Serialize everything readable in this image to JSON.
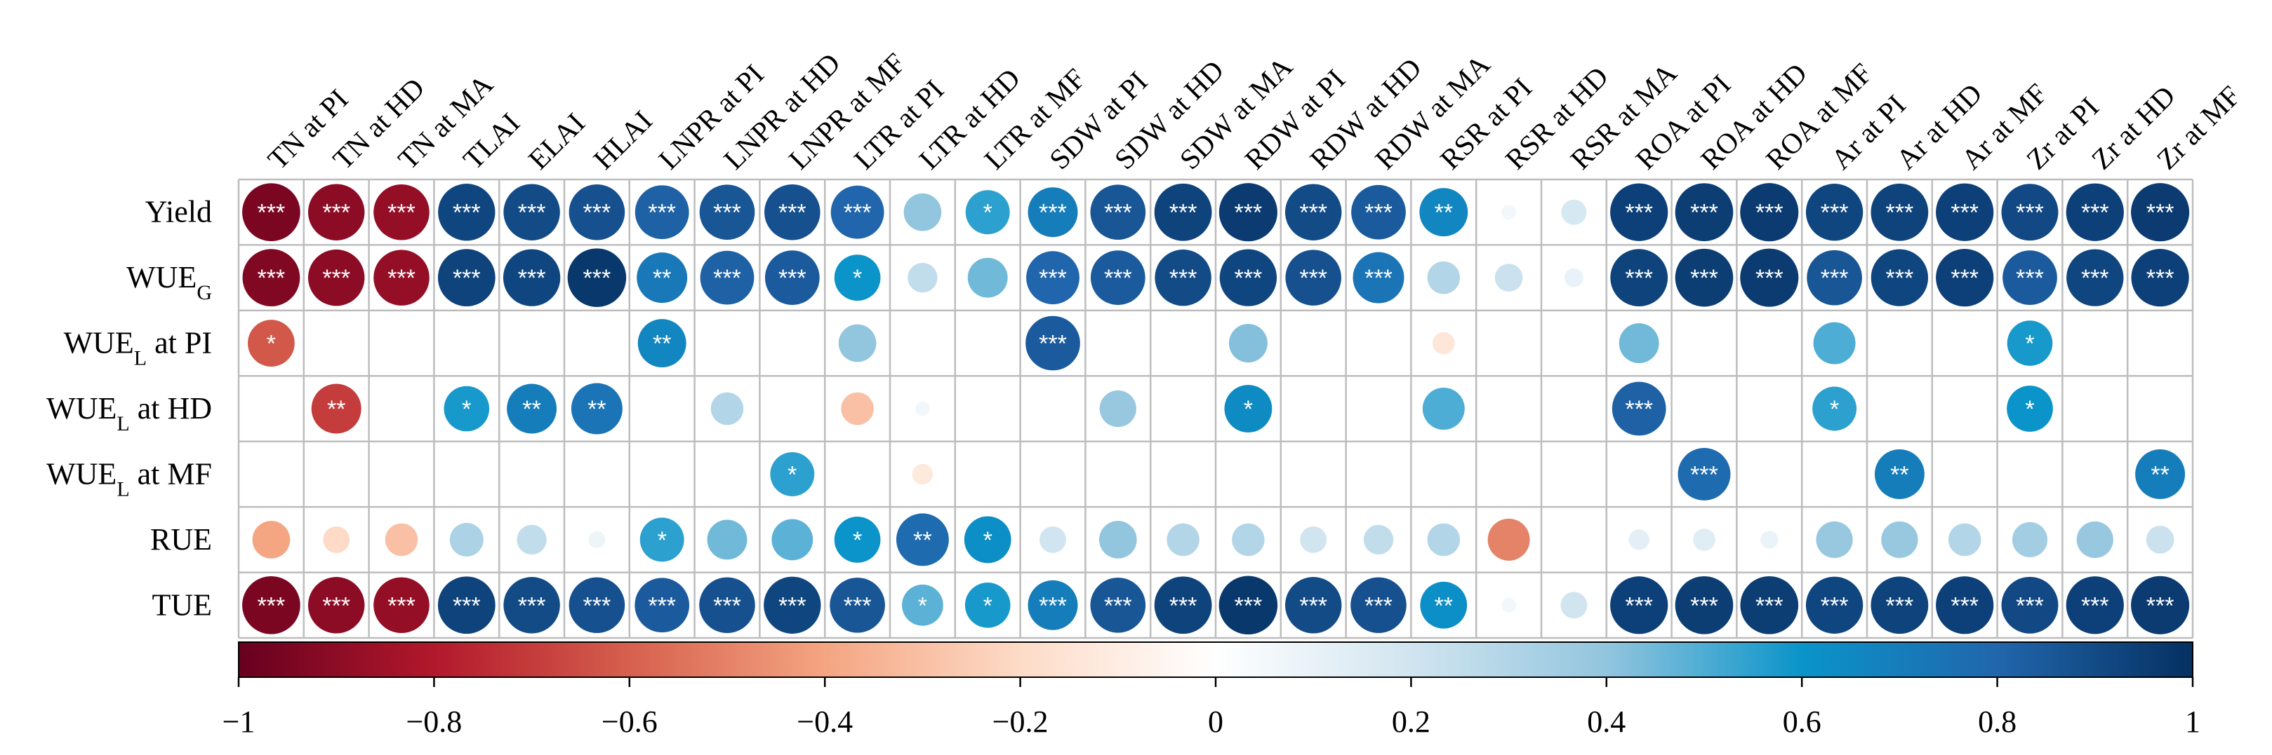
{
  "chart_data": {
    "type": "heatmap",
    "style": "correlation-circles",
    "columns": [
      "TN at PI",
      "TN at HD",
      "TN at MA",
      "TLAI",
      "ELAI",
      "HLAI",
      "LNPR at PI",
      "LNPR at HD",
      "LNPR at MF",
      "LTR at PI",
      "LTR at HD",
      "LTR at MF",
      "SDW at PI",
      "SDW at HD",
      "SDW at MA",
      "RDW at PI",
      "RDW at HD",
      "RDW at MA",
      "RSR at PI",
      "RSR at HD",
      "RSR at MA",
      "ROA at PI",
      "ROA at HD",
      "ROA at MF",
      "Ar at PI",
      "Ar at HD",
      "Ar at MF",
      "Zr at PI",
      "Zr at HD",
      "Zr at MF"
    ],
    "rows": [
      {
        "label": "Yield",
        "sub": ""
      },
      {
        "label": "WUE",
        "sub": "G"
      },
      {
        "label": "WUE",
        "sub": "L",
        "suffix": " at PI"
      },
      {
        "label": "WUE",
        "sub": "L",
        "suffix": " at HD"
      },
      {
        "label": "WUE",
        "sub": "L",
        "suffix": " at MF"
      },
      {
        "label": "RUE",
        "sub": ""
      },
      {
        "label": "TUE",
        "sub": ""
      }
    ],
    "values": [
      [
        -0.95,
        -0.9,
        -0.88,
        0.92,
        0.9,
        0.88,
        0.82,
        0.86,
        0.88,
        0.8,
        0.4,
        0.55,
        0.7,
        0.86,
        0.93,
        0.96,
        0.9,
        0.84,
        0.66,
        0.06,
        0.18,
        0.94,
        0.95,
        0.96,
        0.92,
        0.93,
        0.94,
        0.91,
        0.94,
        0.96
      ],
      [
        -0.93,
        -0.9,
        -0.88,
        0.93,
        0.92,
        0.97,
        0.72,
        0.82,
        0.84,
        0.6,
        0.25,
        0.45,
        0.8,
        0.84,
        0.9,
        0.92,
        0.88,
        0.74,
        0.3,
        0.22,
        0.1,
        0.93,
        0.95,
        0.96,
        0.86,
        0.92,
        0.94,
        0.84,
        0.92,
        0.94
      ],
      [
        -0.62,
        null,
        null,
        null,
        null,
        null,
        0.66,
        null,
        null,
        0.4,
        null,
        null,
        0.84,
        null,
        null,
        0.42,
        null,
        null,
        -0.14,
        null,
        null,
        0.45,
        null,
        null,
        0.5,
        null,
        null,
        0.58,
        null,
        null
      ],
      [
        null,
        -0.7,
        null,
        0.58,
        0.7,
        0.74,
        null,
        0.3,
        null,
        -0.3,
        0.06,
        null,
        null,
        0.38,
        null,
        0.64,
        null,
        null,
        0.5,
        null,
        null,
        0.82,
        null,
        null,
        0.55,
        null,
        null,
        0.6,
        null,
        null
      ],
      [
        null,
        null,
        null,
        null,
        null,
        null,
        null,
        null,
        0.55,
        null,
        -0.12,
        null,
        null,
        null,
        null,
        null,
        null,
        null,
        null,
        null,
        null,
        null,
        0.78,
        null,
        null,
        0.7,
        null,
        null,
        null,
        0.7
      ],
      [
        -0.4,
        -0.2,
        -0.3,
        0.32,
        0.25,
        0.08,
        0.55,
        0.45,
        0.48,
        0.6,
        0.78,
        0.62,
        0.2,
        0.4,
        0.3,
        0.3,
        0.2,
        0.25,
        0.3,
        -0.5,
        null,
        0.12,
        0.14,
        0.09,
        0.38,
        0.38,
        0.3,
        0.35,
        0.38,
        0.22
      ],
      [
        -0.95,
        -0.9,
        -0.88,
        0.93,
        0.9,
        0.88,
        0.84,
        0.88,
        0.92,
        0.86,
        0.48,
        0.58,
        0.7,
        0.86,
        0.93,
        0.97,
        0.9,
        0.88,
        0.62,
        0.06,
        0.2,
        0.94,
        0.95,
        0.95,
        0.92,
        0.93,
        0.94,
        0.91,
        0.94,
        0.96
      ]
    ],
    "stars": [
      [
        "***",
        "***",
        "***",
        "***",
        "***",
        "***",
        "***",
        "***",
        "***",
        "***",
        "",
        "*",
        "***",
        "***",
        "***",
        "***",
        "***",
        "***",
        "**",
        "",
        "",
        "***",
        "***",
        "***",
        "***",
        "***",
        "***",
        "***",
        "***",
        "***"
      ],
      [
        "***",
        "***",
        "***",
        "***",
        "***",
        "***",
        "**",
        "***",
        "***",
        "*",
        "",
        "",
        "***",
        "***",
        "***",
        "***",
        "***",
        "***",
        "",
        "",
        "",
        "***",
        "***",
        "***",
        "***",
        "***",
        "***",
        "***",
        "***",
        "***"
      ],
      [
        "*",
        "",
        "",
        "",
        "",
        "",
        "**",
        "",
        "",
        "",
        "",
        "",
        "***",
        "",
        "",
        "",
        "",
        "",
        "",
        "",
        "",
        "",
        "",
        "",
        "",
        "",
        "",
        "*",
        "",
        ""
      ],
      [
        "",
        "**",
        "",
        "*",
        "**",
        "**",
        "",
        "",
        "",
        "",
        "",
        "",
        "",
        "",
        "",
        "*",
        "",
        "",
        "",
        "",
        "",
        "***",
        "",
        "",
        "*",
        "",
        "",
        "*",
        "",
        ""
      ],
      [
        "",
        "",
        "",
        "",
        "",
        "",
        "",
        "",
        "*",
        "",
        "",
        "",
        "",
        "",
        "",
        "",
        "",
        "",
        "",
        "",
        "",
        "",
        "***",
        "",
        "",
        "**",
        "",
        "",
        "",
        "**"
      ],
      [
        "",
        "",
        "",
        "",
        "",
        "",
        "*",
        "",
        "",
        "*",
        "**",
        "*",
        "",
        "",
        "",
        "",
        "",
        "",
        "",
        "",
        "",
        "",
        "",
        "",
        "",
        "",
        "",
        "",
        "",
        ""
      ],
      [
        "***",
        "***",
        "***",
        "***",
        "***",
        "***",
        "***",
        "***",
        "***",
        "***",
        "*",
        "*",
        "***",
        "***",
        "***",
        "***",
        "***",
        "***",
        "**",
        "",
        "",
        "***",
        "***",
        "***",
        "***",
        "***",
        "***",
        "***",
        "***",
        "***"
      ]
    ],
    "colorbar": {
      "range": [
        -1,
        1
      ],
      "ticks": [
        "−1",
        "−0.8",
        "−0.6",
        "−0.4",
        "−0.2",
        "0",
        "0.2",
        "0.4",
        "0.6",
        "0.8",
        "1"
      ],
      "colors": [
        "#67001f",
        "#b2182b",
        "#d6604d",
        "#f4a582",
        "#fddbc7",
        "#ffffff",
        "#d1e5f0",
        "#92c5de",
        "#0a94c9",
        "#2166ac",
        "#053061"
      ]
    }
  }
}
